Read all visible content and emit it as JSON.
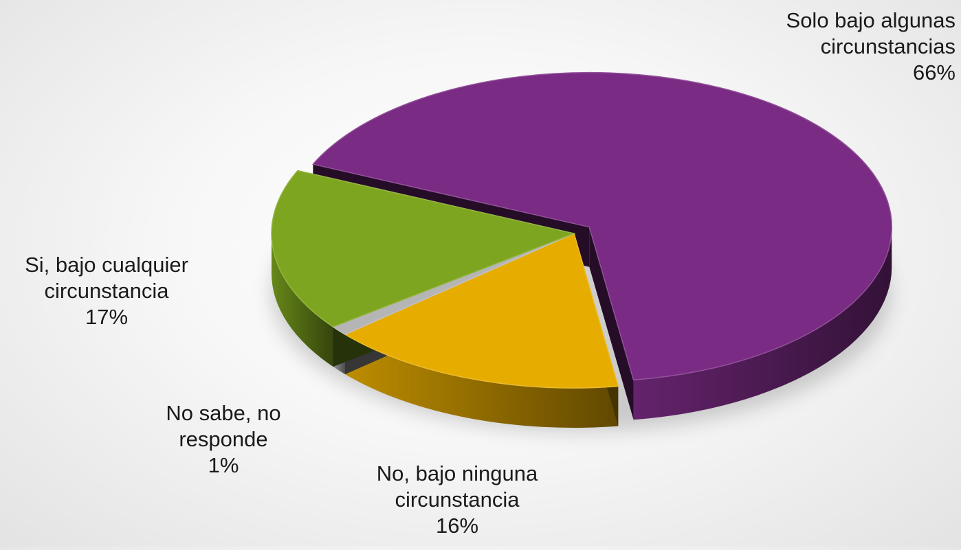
{
  "chart_data": {
    "type": "pie",
    "style": "3d-exploded",
    "title": "",
    "legend": "none",
    "slices": [
      {
        "label_lines": [
          "Solo bajo algunas",
          "circunstancias"
        ],
        "percent_text": "66%",
        "value": 66,
        "color": "#7a2b84",
        "label_anchor": "end"
      },
      {
        "label_lines": [
          "No, bajo ninguna",
          "circunstancia"
        ],
        "percent_text": "16%",
        "value": 16,
        "color": "#e6ac00",
        "label_anchor": "middle"
      },
      {
        "label_lines": [
          "No sabe, no",
          "responde"
        ],
        "percent_text": "1%",
        "value": 1,
        "color": "#b5b5b5",
        "label_anchor": "middle"
      },
      {
        "label_lines": [
          "Si, bajo cualquier",
          "circunstancia"
        ],
        "percent_text": "17%",
        "value": 17,
        "color": "#7ea51f",
        "label_anchor": "middle"
      }
    ]
  }
}
